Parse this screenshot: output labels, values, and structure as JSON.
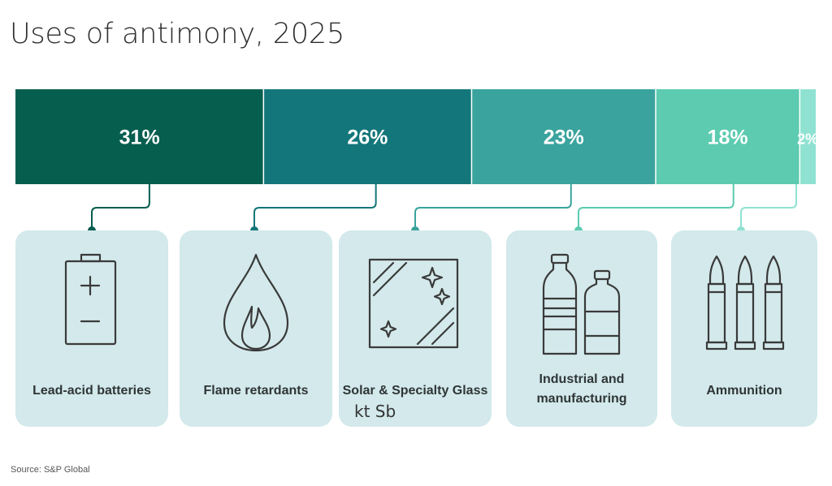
{
  "page_title": "Uses of antimony, 2025",
  "unit_note": "kt Sb",
  "source": "Source: S&P Global",
  "chart_data": {
    "type": "bar",
    "stacked": true,
    "title": "Uses of antimony, 2025",
    "unit": "%",
    "categories": [
      "Lead-acid batteries",
      "Flame retardants",
      "Solar & Specialty Glass",
      "Industrial and manufacturing",
      "Ammunition"
    ],
    "values": [
      31,
      26,
      23,
      18,
      2
    ],
    "value_labels": [
      "31%",
      "26%",
      "23%",
      "18%",
      "2%"
    ],
    "colors": [
      "#065e4f",
      "#13767a",
      "#3aa39d",
      "#5ccbb0",
      "#8fe2d1"
    ],
    "icons": [
      "battery-icon",
      "flame-icon",
      "glass-pane-icon",
      "bottles-icon",
      "bullets-icon"
    ]
  }
}
